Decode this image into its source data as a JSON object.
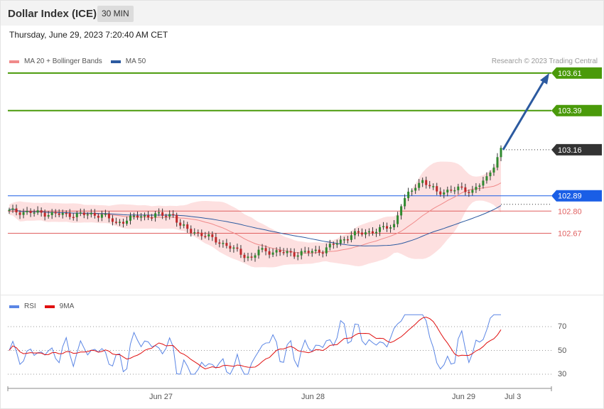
{
  "header": {
    "title": "Dollar Index (ICE)",
    "interval": "30 MIN"
  },
  "datetime": "Thursday, June 29, 2023 7:20:40 AM CET",
  "legend": {
    "items": [
      {
        "label": "MA 20 + Bollinger Bands",
        "color": "#f08a8a"
      },
      {
        "label": "MA 50",
        "color": "#2c5aa0"
      }
    ],
    "copyright": "Research © 2023 Trading Central"
  },
  "rsi_legend": {
    "items": [
      {
        "label": "RSI",
        "color": "#5b86e5"
      },
      {
        "label": "9MA",
        "color": "#e01010"
      }
    ]
  },
  "chart_data": [
    {
      "type": "candlestick",
      "price_range": [
        102.41,
        103.68
      ],
      "levels": [
        {
          "value": 103.61,
          "label": "103.61",
          "color": "#4a9a0a",
          "kind": "resistance"
        },
        {
          "value": 103.39,
          "label": "103.39",
          "color": "#4a9a0a",
          "kind": "resistance"
        },
        {
          "value": 103.16,
          "label": "103.16",
          "color": "#333333",
          "kind": "last"
        },
        {
          "value": 102.89,
          "label": "102.89",
          "color": "#1a5ee6",
          "kind": "pivot"
        },
        {
          "value": 102.8,
          "label": "102.80",
          "color": "#e06060",
          "kind": "support"
        },
        {
          "value": 102.67,
          "label": "102.67",
          "color": "#e06060",
          "kind": "support"
        }
      ],
      "x_labels": [
        "Jun 27",
        "Jun 28",
        "Jun 29",
        "Jul 3"
      ],
      "target_arrow": {
        "from": 103.16,
        "to": 103.61
      }
    },
    {
      "type": "line",
      "name": "RSI",
      "ylim": [
        20,
        80
      ],
      "y_ticks": [
        70,
        50,
        30
      ],
      "series": [
        {
          "name": "RSI",
          "color": "#5b86e5"
        },
        {
          "name": "9MA",
          "color": "#e01010"
        }
      ]
    }
  ]
}
